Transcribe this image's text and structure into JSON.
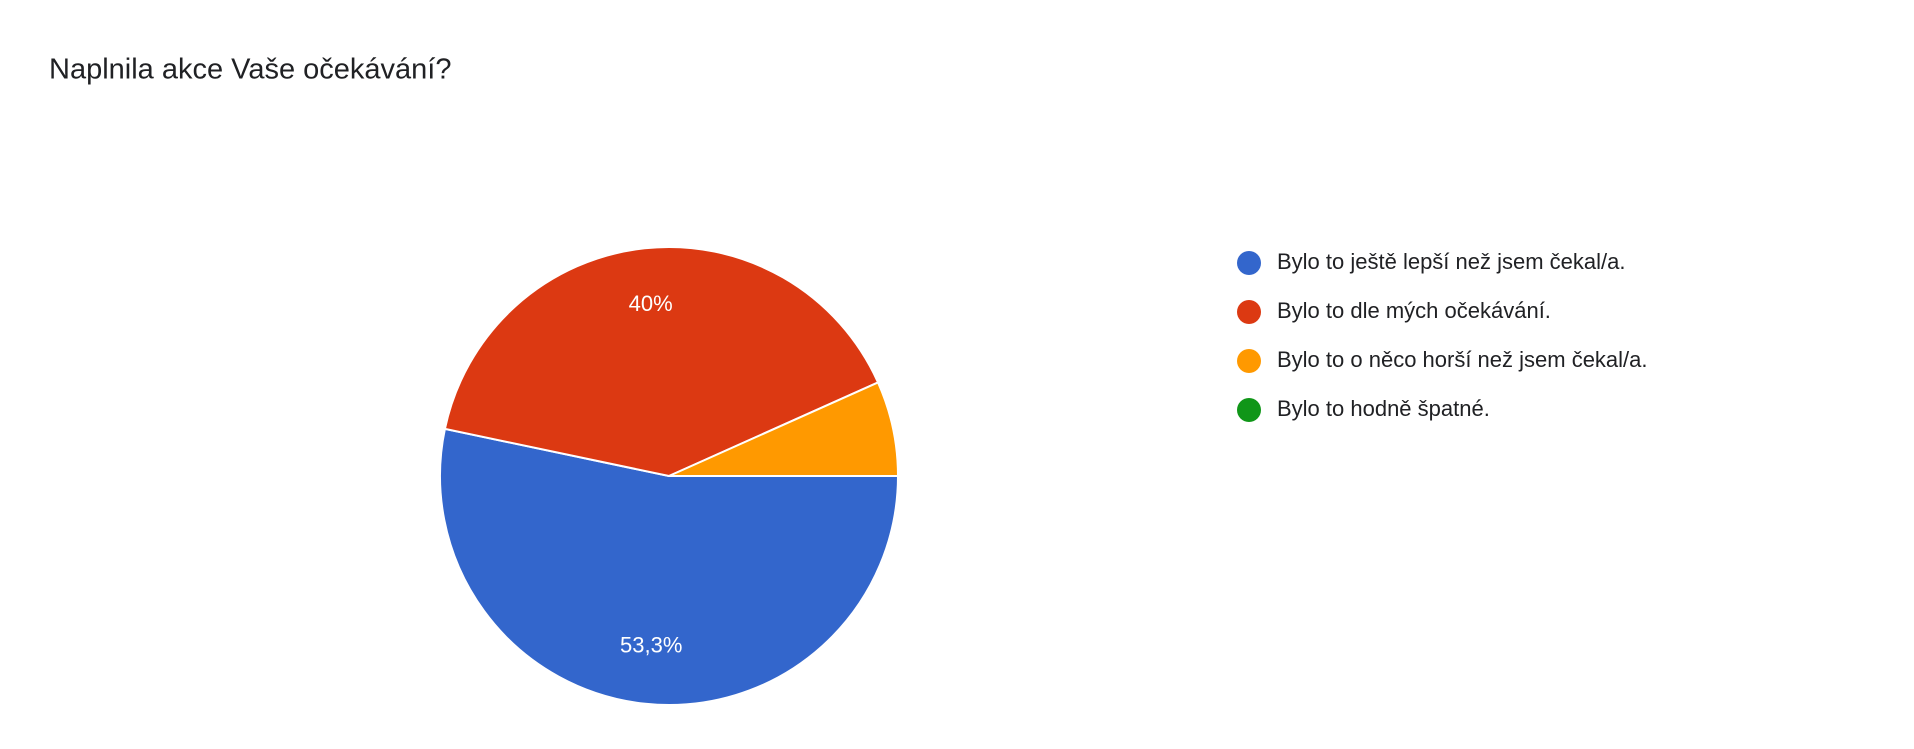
{
  "chart_data": {
    "type": "pie",
    "title": "Naplnila akce Vaše očekávání?",
    "categories": [
      "Bylo to ještě lepší než jsem čekal/a.",
      "Bylo to dle mých očekávání.",
      "Bylo to o něco horší než jsem čekal/a.",
      "Bylo to hodně špatné."
    ],
    "values": [
      53.3,
      40,
      6.7,
      0
    ],
    "value_labels": [
      "53,3%",
      "40%",
      null,
      null
    ],
    "colors": [
      "#3366cc",
      "#dc3912",
      "#ff9900",
      "#109618"
    ],
    "legend": "right"
  }
}
